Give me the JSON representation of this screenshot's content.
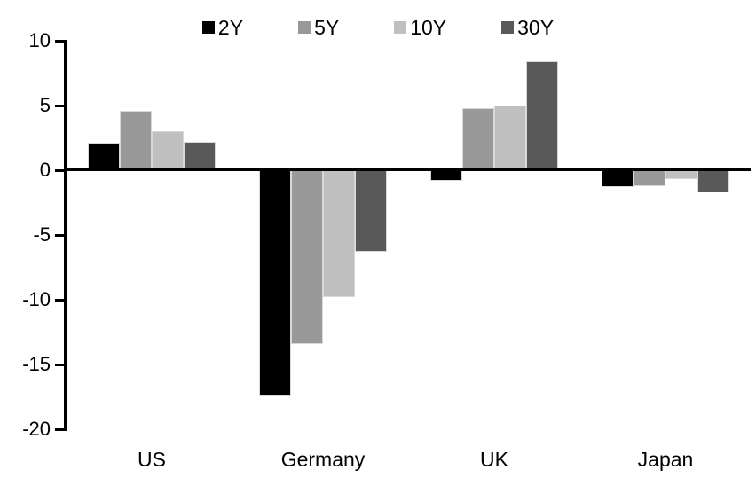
{
  "chart_data": {
    "type": "bar",
    "title": "",
    "categories": [
      "US",
      "Germany",
      "UK",
      "Japan"
    ],
    "series": [
      {
        "name": "2Y",
        "color": "#000000",
        "values": [
          2.1,
          -17.4,
          -0.8,
          -1.3
        ]
      },
      {
        "name": "5Y",
        "color": "#999999",
        "values": [
          4.6,
          -13.4,
          4.8,
          -1.2
        ]
      },
      {
        "name": "10Y",
        "color": "#bfbfbf",
        "values": [
          3.0,
          -9.8,
          5.0,
          -0.7
        ]
      },
      {
        "name": "30Y",
        "color": "#595959",
        "values": [
          2.2,
          -6.3,
          8.4,
          -1.7
        ]
      }
    ],
    "ylim": [
      -20,
      10
    ],
    "yticks": [
      10,
      5,
      0,
      -5,
      -10,
      -15,
      -20
    ],
    "grid": false,
    "legend_position": "top",
    "axis_color": "#000000",
    "background_color": "#ffffff"
  }
}
